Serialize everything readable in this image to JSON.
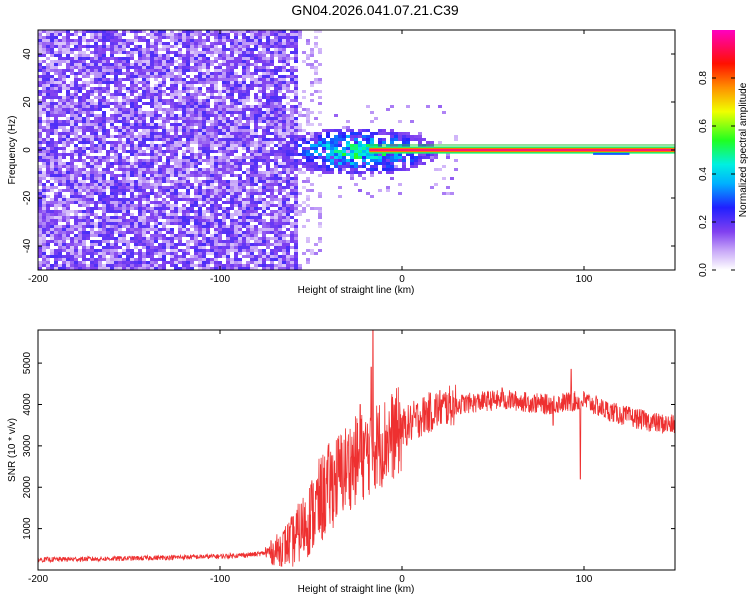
{
  "page_title": "GN04.2026.041.07.21.C39",
  "colorbar": {
    "label": "Normalized spectral amplitude",
    "ticks": [
      "0.0",
      "0.2",
      "0.4",
      "0.6",
      "0.8"
    ],
    "tick_values": [
      0.0,
      0.2,
      0.4,
      0.6,
      0.8
    ],
    "range": [
      0,
      1
    ],
    "colormap": [
      "#ffffff",
      "#9b50f0",
      "#3030ff",
      "#00e0ff",
      "#20ff20",
      "#ffff00",
      "#ff8000",
      "#ff0000",
      "#ff00c0"
    ]
  },
  "chart_data": [
    {
      "type": "heatmap",
      "title": "GN04.2026.041.07.21.C39",
      "xlabel": "Height of straight line (km)",
      "ylabel": "Frequency (Hz)",
      "xlim": [
        -200,
        150
      ],
      "ylim": [
        -50,
        50
      ],
      "xticks": [
        -200,
        -100,
        0,
        100
      ],
      "xtick_labels": [
        "-200",
        "-100",
        "0",
        "100"
      ],
      "yticks": [
        -40,
        -20,
        0,
        20,
        40
      ],
      "ytick_labels": [
        "-40",
        "-20",
        "0",
        "20",
        "40"
      ],
      "description_regions": [
        {
          "x_range": [
            -200,
            -55
          ],
          "freq_range": [
            -50,
            50
          ],
          "amplitude": 0.15
        },
        {
          "x_range": [
            -70,
            20
          ],
          "freq_range": [
            -15,
            12
          ],
          "amplitude": 0.35
        },
        {
          "x_range": [
            -40,
            -10
          ],
          "freq_range": [
            -3,
            3
          ],
          "amplitude": 0.45
        },
        {
          "x_range": [
            -15,
            150
          ],
          "freq_range": [
            -1,
            1
          ],
          "amplitude": 0.95
        }
      ]
    },
    {
      "type": "line",
      "xlabel": "Height of straight line (km)",
      "ylabel": "SNR (10 * v/v)",
      "xlim": [
        -200,
        150
      ],
      "ylim": [
        0,
        5800
      ],
      "xticks": [
        -200,
        -100,
        0,
        100
      ],
      "xtick_labels": [
        "-200",
        "-100",
        "0",
        "100"
      ],
      "yticks": [
        1000,
        2000,
        3000,
        4000,
        5000
      ],
      "ytick_labels": [
        "1000",
        "2000",
        "3000",
        "4000",
        "5000"
      ],
      "series": [
        {
          "color": "#ee3030",
          "envelope_x": [
            -200,
            -150,
            -100,
            -80,
            -70,
            -60,
            -50,
            -40,
            -30,
            -20,
            -15,
            -10,
            0,
            10,
            20,
            30,
            40,
            50,
            60,
            70,
            80,
            90,
            100,
            110,
            120,
            130,
            140,
            150
          ],
          "envelope_y": [
            250,
            280,
            330,
            380,
            450,
            700,
            1300,
            2000,
            2500,
            2800,
            3000,
            3100,
            3400,
            3700,
            3900,
            4000,
            4050,
            4100,
            4100,
            4050,
            4000,
            4050,
            4100,
            3900,
            3750,
            3650,
            3550,
            3500
          ],
          "spikes": [
            {
              "x": -17,
              "y": 4900
            },
            {
              "x": -16,
              "y": 5800
            },
            {
              "x": -23,
              "y": 4000
            },
            {
              "x": 55,
              "y": 4400
            },
            {
              "x": 93,
              "y": 4850
            },
            {
              "x": 98,
              "y": 2200
            },
            {
              "x": 83,
              "y": 3500
            }
          ]
        }
      ]
    }
  ]
}
